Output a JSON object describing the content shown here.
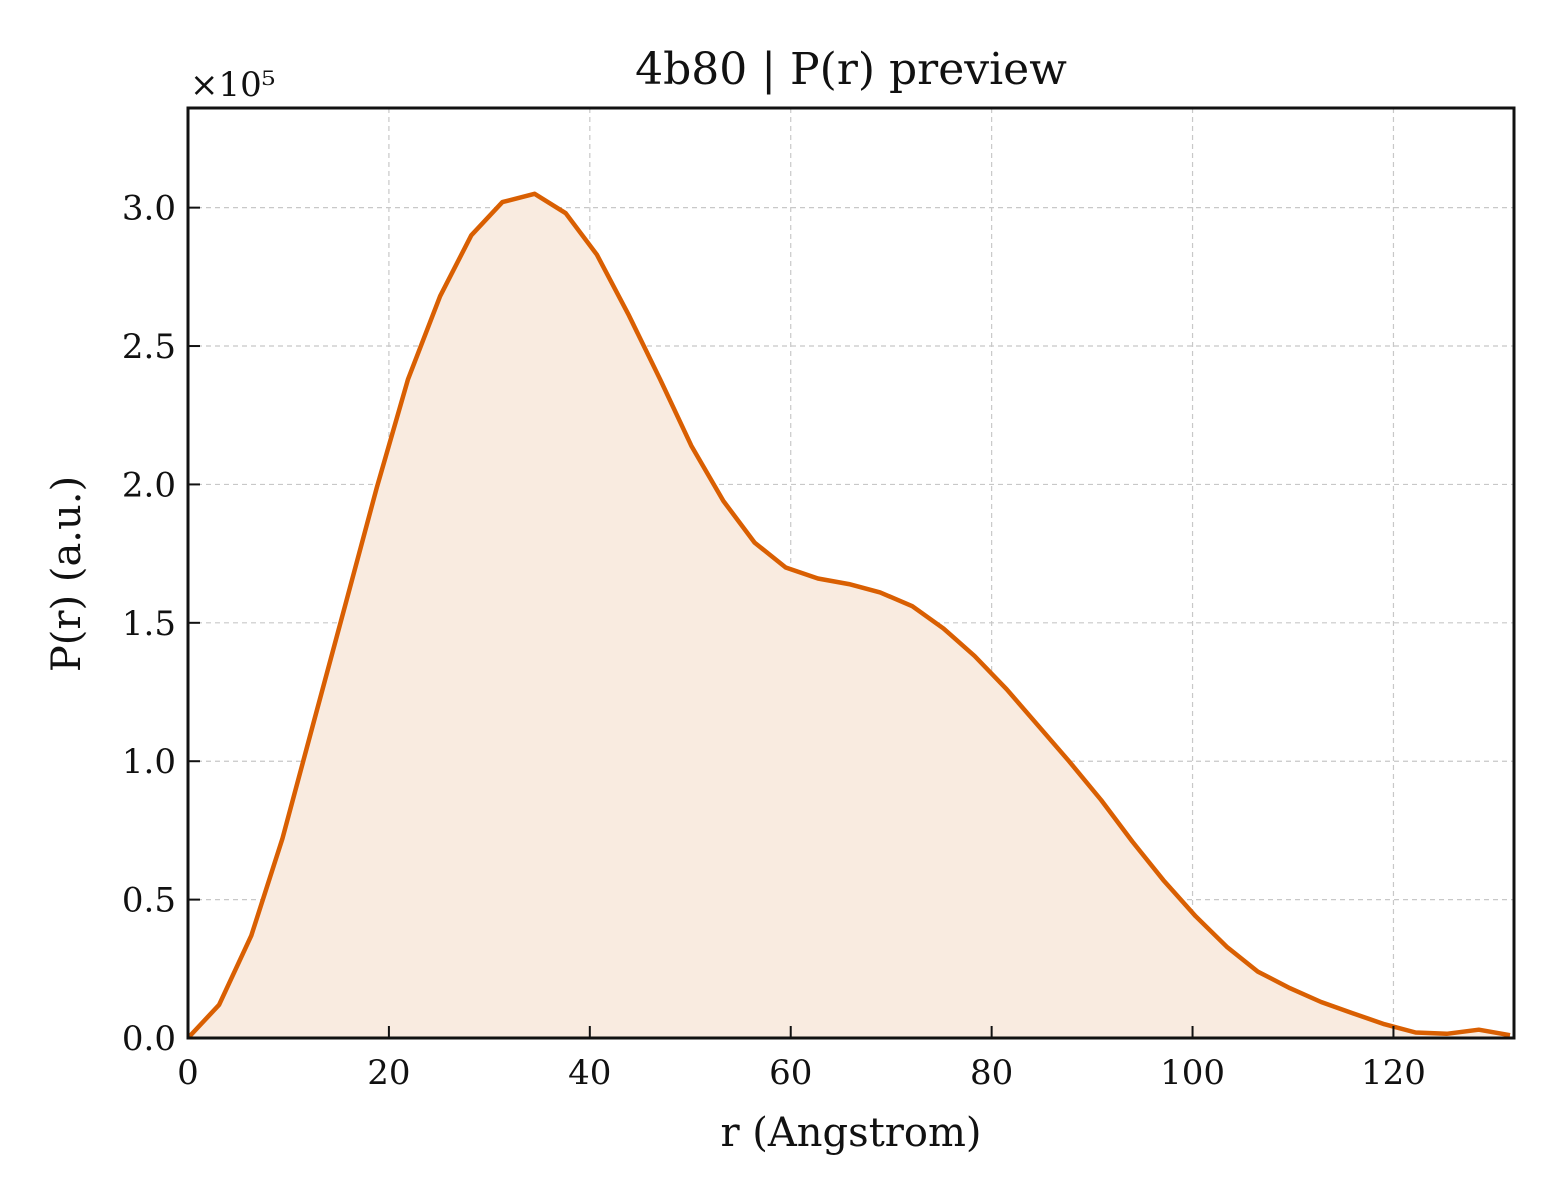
{
  "chart_data": {
    "type": "area",
    "title": "4b80 | P(r) preview",
    "xlabel": "r (Angstrom)",
    "ylabel": "P(r) (a.u.)",
    "y_offset_label": "×10⁵",
    "xlim": [
      0,
      132
    ],
    "ylim": [
      0,
      3.36
    ],
    "x_ticks": [
      0,
      20,
      40,
      60,
      80,
      100,
      120
    ],
    "x_tick_labels": [
      "0",
      "20",
      "40",
      "60",
      "80",
      "100",
      "120"
    ],
    "y_ticks": [
      0,
      0.5,
      1.0,
      1.5,
      2.0,
      2.5,
      3.0
    ],
    "y_tick_labels": [
      "0.0",
      "0.5",
      "1.0",
      "1.5",
      "2.0",
      "2.5",
      "3.0"
    ],
    "grid": true,
    "color": "#d95f02",
    "fill_color": "#f9ebe0",
    "series": [
      {
        "x": [
          0,
          3.1,
          6.3,
          9.4,
          12.5,
          15.7,
          18.8,
          21.9,
          25.1,
          28.2,
          31.3,
          34.5,
          37.6,
          40.7,
          43.9,
          47.0,
          50.1,
          53.3,
          56.4,
          59.5,
          62.7,
          65.8,
          68.9,
          72.1,
          75.2,
          78.3,
          81.5,
          84.6,
          87.7,
          90.9,
          94.0,
          97.1,
          100.3,
          103.4,
          106.5,
          109.7,
          112.8,
          115.9,
          119.1,
          122.2,
          125.3,
          128.5,
          131.6
        ],
        "y": [
          0.0,
          0.12,
          0.37,
          0.72,
          1.14,
          1.57,
          1.99,
          2.38,
          2.68,
          2.9,
          3.02,
          3.05,
          2.98,
          2.83,
          2.61,
          2.38,
          2.14,
          1.94,
          1.79,
          1.7,
          1.66,
          1.64,
          1.61,
          1.56,
          1.48,
          1.38,
          1.26,
          1.13,
          1.0,
          0.86,
          0.71,
          0.57,
          0.44,
          0.33,
          0.24,
          0.18,
          0.13,
          0.09,
          0.05,
          0.02,
          0.015,
          0.03,
          0.01
        ]
      }
    ]
  }
}
